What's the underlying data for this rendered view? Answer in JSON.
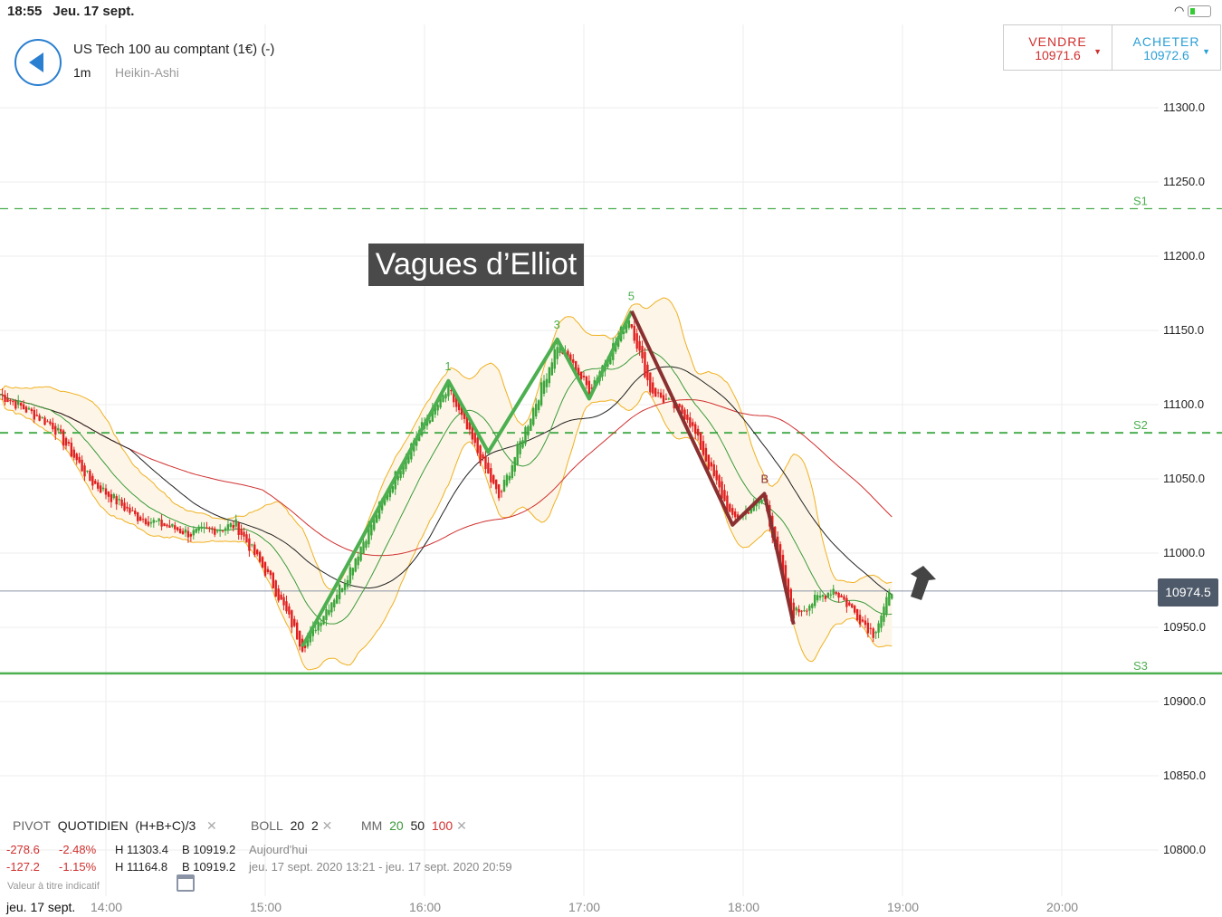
{
  "status_bar": {
    "time": "18:55",
    "date": "Jeu. 17 sept.",
    "icons": [
      "wifi-icon",
      "battery-charging-icon"
    ]
  },
  "header": {
    "instrument": "US Tech 100 au comptant (1€) (-)",
    "timeframe": "1m",
    "chart_type": "Heikin-Ashi"
  },
  "ticket": {
    "sell_label": "VENDRE",
    "sell_price": "10971.6",
    "buy_label": "ACHETER",
    "buy_price": "10972.6",
    "sell_color": "#d0302f",
    "buy_color": "#2a9fd6"
  },
  "annotation": "Vagues d’Elliot",
  "legend": {
    "pivot": "PIVOT",
    "pivot_period": "QUOTIDIEN",
    "pivot_formula": "(H+B+C)/3",
    "boll": "BOLL",
    "boll_n": "20",
    "boll_k": "2",
    "mm": "MM",
    "mm_1": "20",
    "mm_2": "50",
    "mm_3": "100",
    "row1": {
      "chg": "-278.6",
      "pct": "-2.48%",
      "high": "H 11303.4",
      "low": "B 10919.2",
      "period": "Aujourd'hui"
    },
    "row2": {
      "chg": "-127.2",
      "pct": "-1.15%",
      "high": "H 11164.8",
      "low": "B 10919.2",
      "period": "jeu. 17 sept. 2020 13:21 - jeu. 17 sept. 2020 20:59"
    },
    "note": "Valeur à titre indicatif"
  },
  "date_label": "jeu. 17 sept.",
  "chart_data": {
    "type": "candlestick",
    "price_ticks": [
      "11300.0",
      "11250.0",
      "11200.0",
      "11150.0",
      "11100.0",
      "11050.0",
      "11000.0",
      "10950.0",
      "10900.0",
      "10850.0",
      "10800.0"
    ],
    "time_ticks": [
      "14:00",
      "15:00",
      "16:00",
      "17:00",
      "18:00",
      "19:00",
      "20:00"
    ],
    "ylim": [
      10800,
      11300
    ],
    "xlim": [
      "13:20",
      "20:40"
    ],
    "current_price": "10974.5",
    "pivots": [
      {
        "name": "S1",
        "value": 11232
      },
      {
        "name": "S2",
        "value": 11081
      },
      {
        "name": "S3",
        "value": 10919
      }
    ],
    "price_path": [
      [
        "13:20",
        11107
      ],
      [
        "13:40",
        11086
      ],
      [
        "13:54",
        11049
      ],
      [
        "14:11",
        11025
      ],
      [
        "14:32",
        11013
      ],
      [
        "14:49",
        11019
      ],
      [
        "15:02",
        10982
      ],
      [
        "15:14",
        10937
      ],
      [
        "15:30",
        10982
      ],
      [
        "15:43",
        11031
      ],
      [
        "15:57",
        11080
      ],
      [
        "16:09",
        11110
      ],
      [
        "16:28",
        11037
      ],
      [
        "16:45",
        11116
      ],
      [
        "16:50",
        11141
      ],
      [
        "17:02",
        11110
      ],
      [
        "17:17",
        11159
      ],
      [
        "17:25",
        11110
      ],
      [
        "17:39",
        11092
      ],
      [
        "17:56",
        11022
      ],
      [
        "18:08",
        11037
      ],
      [
        "18:18",
        10958
      ],
      [
        "18:34",
        10976
      ],
      [
        "18:49",
        10946
      ],
      [
        "18:56",
        10975
      ]
    ],
    "elliott_impulse": [
      {
        "label": "",
        "t": "15:14",
        "p": 10937
      },
      {
        "label": "1",
        "t": "16:09",
        "p": 11116
      },
      {
        "label": "",
        "t": "16:24",
        "p": 11068
      },
      {
        "label": "3",
        "t": "16:50",
        "p": 11144
      },
      {
        "label": "",
        "t": "17:02",
        "p": 11104
      },
      {
        "label": "5",
        "t": "17:18",
        "p": 11163
      }
    ],
    "elliott_correction": [
      {
        "label": "",
        "t": "17:18",
        "p": 11163
      },
      {
        "label": "",
        "t": "17:56",
        "p": 11019
      },
      {
        "label": "B",
        "t": "18:08",
        "p": 11040
      },
      {
        "label": "",
        "t": "18:19",
        "p": 10952
      }
    ],
    "colors": {
      "up": "#3aa53a",
      "down": "#e02020",
      "ma20": "#3a9a3a",
      "ma50": "#222222",
      "ma100": "#d0302f",
      "bollinger": "#f0b020",
      "pivot": "#4caf50",
      "impulse": "#4caf50",
      "correction": "#8b3030"
    }
  }
}
